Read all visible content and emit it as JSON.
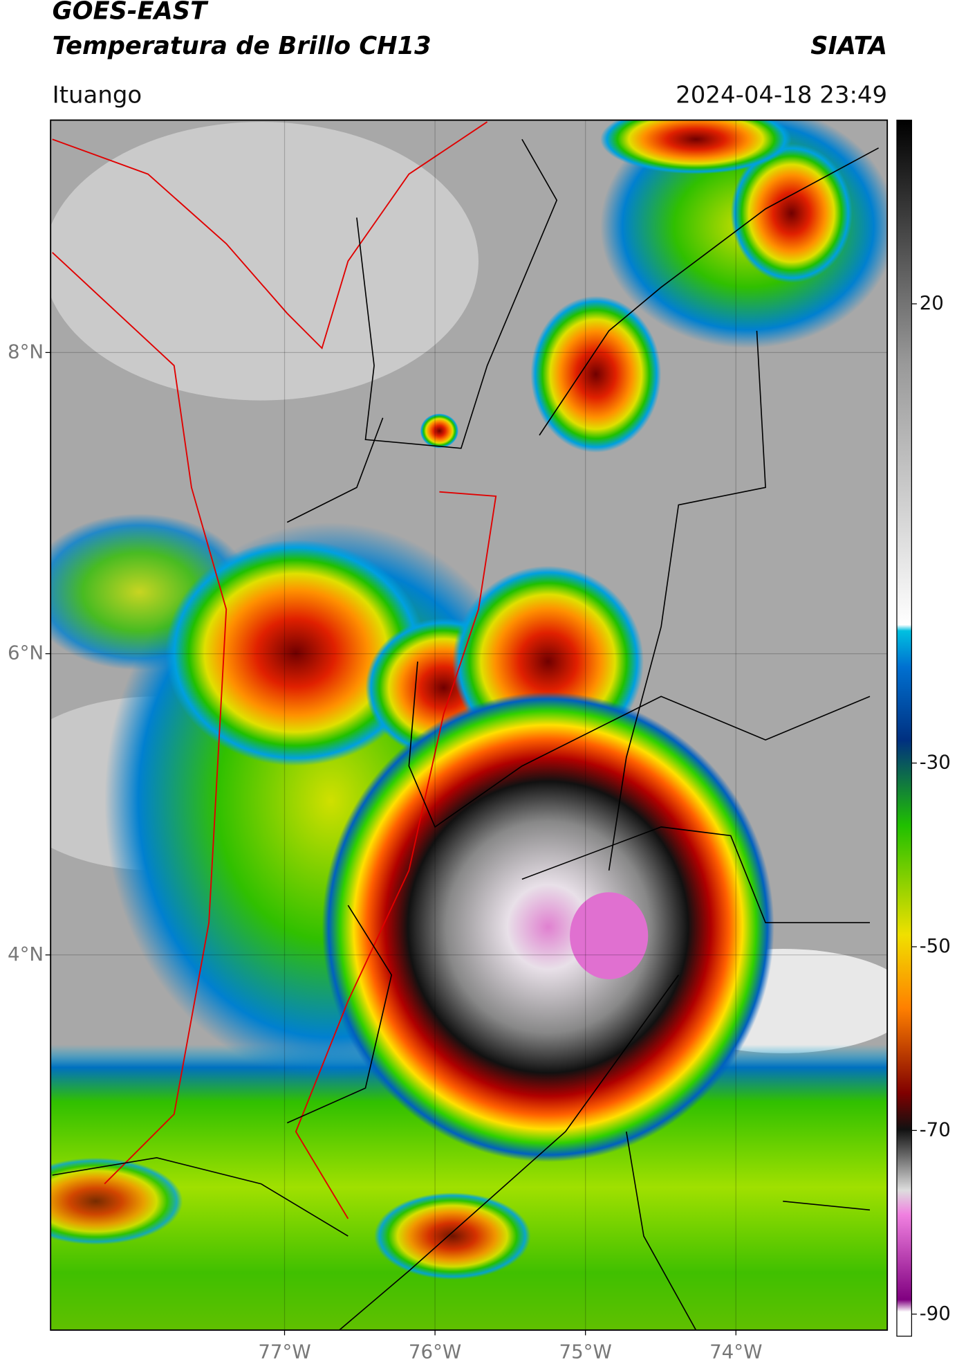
{
  "header": {
    "title_line1": "GOES-EAST",
    "title_line2": "Temperatura de Brillo CH13",
    "org": "SIATA",
    "location": "Ituango",
    "datetime": "2024-04-18 23:49"
  },
  "map": {
    "xlim": [
      -78.555,
      -72.994
    ],
    "ylim": [
      1.509,
      9.543
    ],
    "xticks": [
      {
        "value": -77,
        "label": "77°W"
      },
      {
        "value": -76,
        "label": "76°W"
      },
      {
        "value": -75,
        "label": "75°W"
      },
      {
        "value": -74,
        "label": "74°W"
      }
    ],
    "yticks": [
      {
        "value": 8,
        "label": "8°N"
      },
      {
        "value": 6,
        "label": "6°N"
      },
      {
        "value": 4,
        "label": "4°N"
      }
    ],
    "grid": true
  },
  "colorbar": {
    "lim": [
      -92.4,
      40
    ],
    "ticks": [
      20,
      -30,
      -50,
      -70,
      -90
    ]
  }
}
